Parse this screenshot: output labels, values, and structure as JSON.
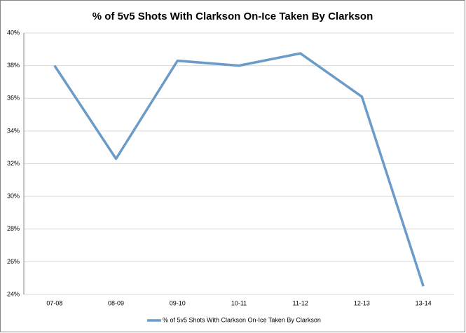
{
  "chart_data": {
    "type": "line",
    "title": "% of 5v5 Shots With Clarkson On-Ice Taken By Clarkson",
    "categories": [
      "07-08",
      "08-09",
      "09-10",
      "10-11",
      "11-12",
      "12-13",
      "13-14"
    ],
    "series": [
      {
        "name": "% of 5v5 Shots With Clarkson On-Ice Taken By Clarkson",
        "color": "#6a9bc9",
        "values": [
          38.0,
          32.3,
          38.3,
          38.0,
          38.75,
          36.1,
          24.5
        ]
      }
    ],
    "ylim": [
      24,
      40
    ],
    "yticks": [
      {
        "value": 24,
        "label": "24%"
      },
      {
        "value": 26,
        "label": "26%"
      },
      {
        "value": 28,
        "label": "28%"
      },
      {
        "value": 30,
        "label": "30%"
      },
      {
        "value": 32,
        "label": "32%"
      },
      {
        "value": 34,
        "label": "34%"
      },
      {
        "value": 36,
        "label": "36%"
      },
      {
        "value": 38,
        "label": "38%"
      },
      {
        "value": 40,
        "label": "40%"
      }
    ],
    "grid": true,
    "legend": "bottom"
  }
}
